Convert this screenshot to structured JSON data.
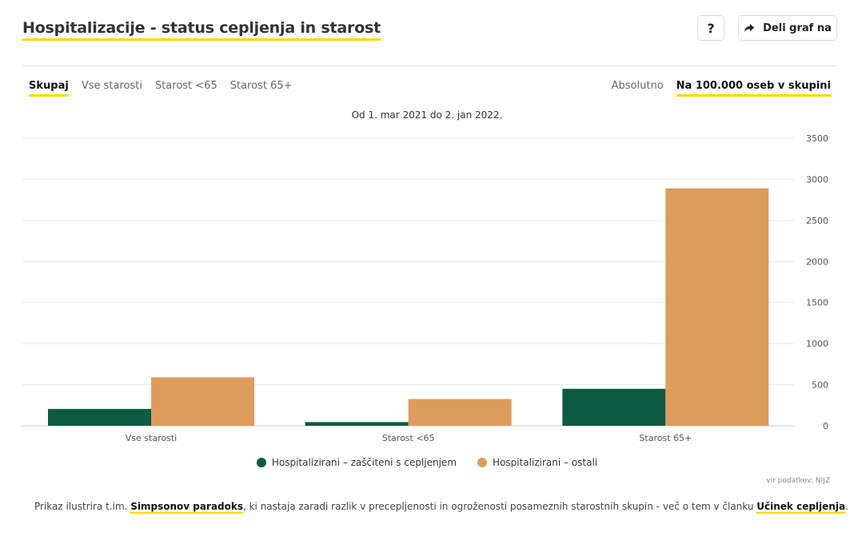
{
  "header": {
    "title": "Hospitalizacije - status cepljenja in starost",
    "help_label": "?",
    "share_label": "Deli graf na"
  },
  "tabs": [
    "Skupaj",
    "Vse starosti",
    "Starost <65",
    "Starost 65+"
  ],
  "modes": [
    "Absolutno",
    "Na 100.000 oseb v skupini"
  ],
  "subtitle": "Od 1. mar 2021 do 2. jan 2022.",
  "colors": {
    "vaccinated": "#0f5a43",
    "others": "#dd9c5b",
    "accent": "#ffd700"
  },
  "chart_data": {
    "type": "bar",
    "categories": [
      "Vse starosti",
      "Starost <65",
      "Starost 65+"
    ],
    "series": [
      {
        "name": "Hospitalizirani – zaščiteni s cepljenjem",
        "values": [
          205,
          45,
          450
        ]
      },
      {
        "name": "Hospitalizirani – ostali",
        "values": [
          590,
          325,
          2890
        ]
      }
    ],
    "yticks": [
      0,
      500,
      1000,
      1500,
      2000,
      2500,
      3000,
      3500
    ],
    "ylim": [
      0,
      3500
    ],
    "legend": "bottom",
    "grid": true
  },
  "source": "vir podatkov: NIJZ",
  "footer": {
    "text1": "Prikaz ilustrira t.im. ",
    "link1": "Simpsonov paradoks",
    "text2": ", ki nastaja zaradi razlik v precepljenosti in ogroženosti posameznih starostnih skupin - več o tem v članku ",
    "link2": "Učinek cepljenja",
    "text3": "."
  }
}
